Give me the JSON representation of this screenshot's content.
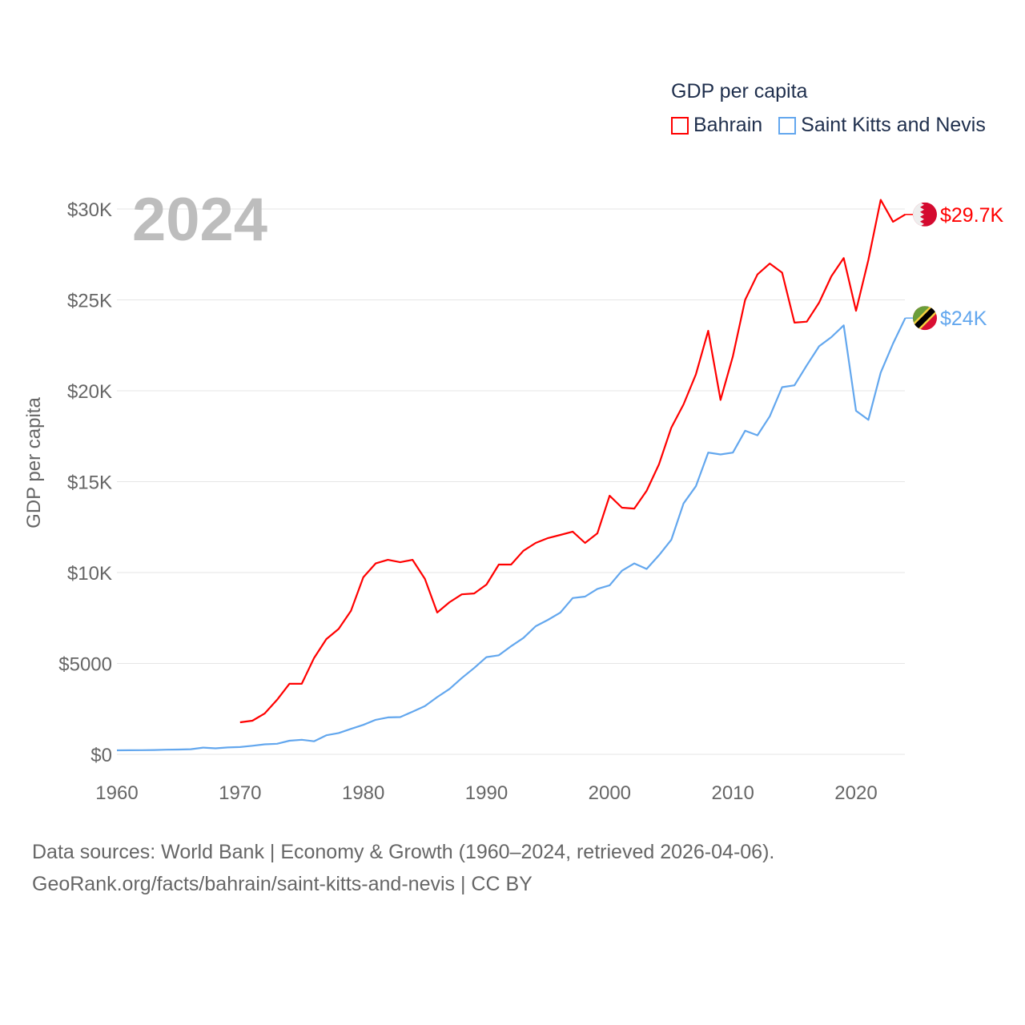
{
  "chart_data": {
    "type": "line",
    "title": "GDP per capita",
    "year_label": "2024",
    "xlabel": "",
    "ylabel": "GDP per capita",
    "xlim": [
      1960,
      2024
    ],
    "ylim": [
      0,
      30000
    ],
    "x_ticks": [
      1960,
      1970,
      1980,
      1990,
      2000,
      2010,
      2020
    ],
    "x_tick_labels": [
      "1960",
      "1970",
      "1980",
      "1990",
      "2000",
      "2010",
      "2020"
    ],
    "y_ticks": [
      0,
      5000,
      10000,
      15000,
      20000,
      25000,
      30000
    ],
    "y_tick_labels": [
      "$0",
      "$5000",
      "$10K",
      "$15K",
      "$20K",
      "$25K",
      "$30K"
    ],
    "grid": true,
    "legend_placement": "top-right",
    "series": [
      {
        "name": "Bahrain",
        "color": "#ff0000",
        "end_label": "$29.7K",
        "flag": "bahrain-flag",
        "start_year": 1970,
        "values": [
          1760,
          1850,
          2250,
          3000,
          3880,
          3880,
          5290,
          6340,
          6900,
          7900,
          9740,
          10500,
          10700,
          10570,
          10700,
          9650,
          7800,
          8370,
          8800,
          8850,
          9340,
          10440,
          10440,
          11200,
          11630,
          11900,
          12070,
          12250,
          11630,
          12160,
          14230,
          13570,
          13520,
          14500,
          15950,
          17970,
          19250,
          20900,
          23300,
          19500,
          21900,
          25000,
          26400,
          27000,
          26500,
          23750,
          23800,
          24850,
          26300,
          27300,
          24400,
          27200,
          30500,
          29300,
          29700
        ]
      },
      {
        "name": "Saint Kitts and Nevis",
        "color": "#63a7ee",
        "end_label": "$24K",
        "flag": "saint-kitts-and-nevis-flag",
        "start_year": 1960,
        "values": [
          220,
          225,
          230,
          240,
          255,
          265,
          280,
          370,
          330,
          380,
          400,
          470,
          550,
          580,
          750,
          800,
          720,
          1050,
          1170,
          1400,
          1620,
          1900,
          2030,
          2050,
          2350,
          2650,
          3150,
          3600,
          4200,
          4750,
          5350,
          5450,
          5950,
          6400,
          7050,
          7400,
          7800,
          8600,
          8680,
          9100,
          9300,
          10100,
          10500,
          10200,
          10950,
          11800,
          13800,
          14750,
          16600,
          16500,
          16600,
          17800,
          17550,
          18600,
          20200,
          20300,
          21400,
          22450,
          22950,
          23600,
          18900,
          18400,
          21000,
          22600,
          24000
        ]
      }
    ]
  },
  "footer": {
    "line1": "Data sources: World Bank | Economy & Growth (1960–2024, retrieved 2026-04-06).",
    "line2": "GeoRank.org/facts/bahrain/saint-kitts-and-nevis | CC BY"
  }
}
